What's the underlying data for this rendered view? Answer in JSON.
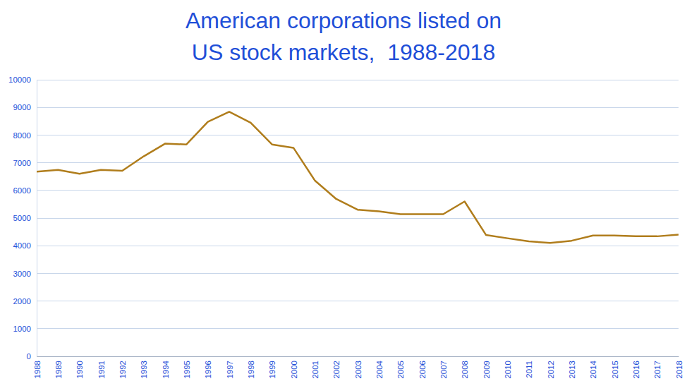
{
  "chart_data": {
    "type": "line",
    "title": "American corporations listed on\nUS stock markets,  1988-2018",
    "x": [
      1988,
      1989,
      1990,
      1991,
      1992,
      1993,
      1994,
      1995,
      1996,
      1997,
      1998,
      1999,
      2000,
      2001,
      2002,
      2003,
      2004,
      2005,
      2006,
      2007,
      2008,
      2009,
      2010,
      2011,
      2012,
      2013,
      2014,
      2015,
      2016,
      2017,
      2018
    ],
    "values": [
      6680,
      6740,
      6600,
      6740,
      6710,
      7230,
      7690,
      7660,
      8480,
      8840,
      8450,
      7660,
      7540,
      6360,
      5690,
      5300,
      5240,
      5140,
      5140,
      5140,
      5600,
      4390,
      4270,
      4160,
      4100,
      4180,
      4370,
      4370,
      4340,
      4340,
      4400
    ],
    "color": "#b07d1c",
    "xlim": [
      1988,
      2018
    ],
    "xticks": [
      1988,
      1989,
      1990,
      1991,
      1992,
      1993,
      1994,
      1995,
      1996,
      1997,
      1998,
      1999,
      2000,
      2001,
      2002,
      2003,
      2004,
      2005,
      2006,
      2007,
      2008,
      2009,
      2010,
      2011,
      2012,
      2013,
      2014,
      2015,
      2016,
      2017,
      2018
    ],
    "ylim": [
      0,
      10000
    ],
    "yticks": [
      0,
      1000,
      2000,
      3000,
      4000,
      5000,
      6000,
      7000,
      8000,
      9000,
      10000
    ],
    "grid": true
  }
}
